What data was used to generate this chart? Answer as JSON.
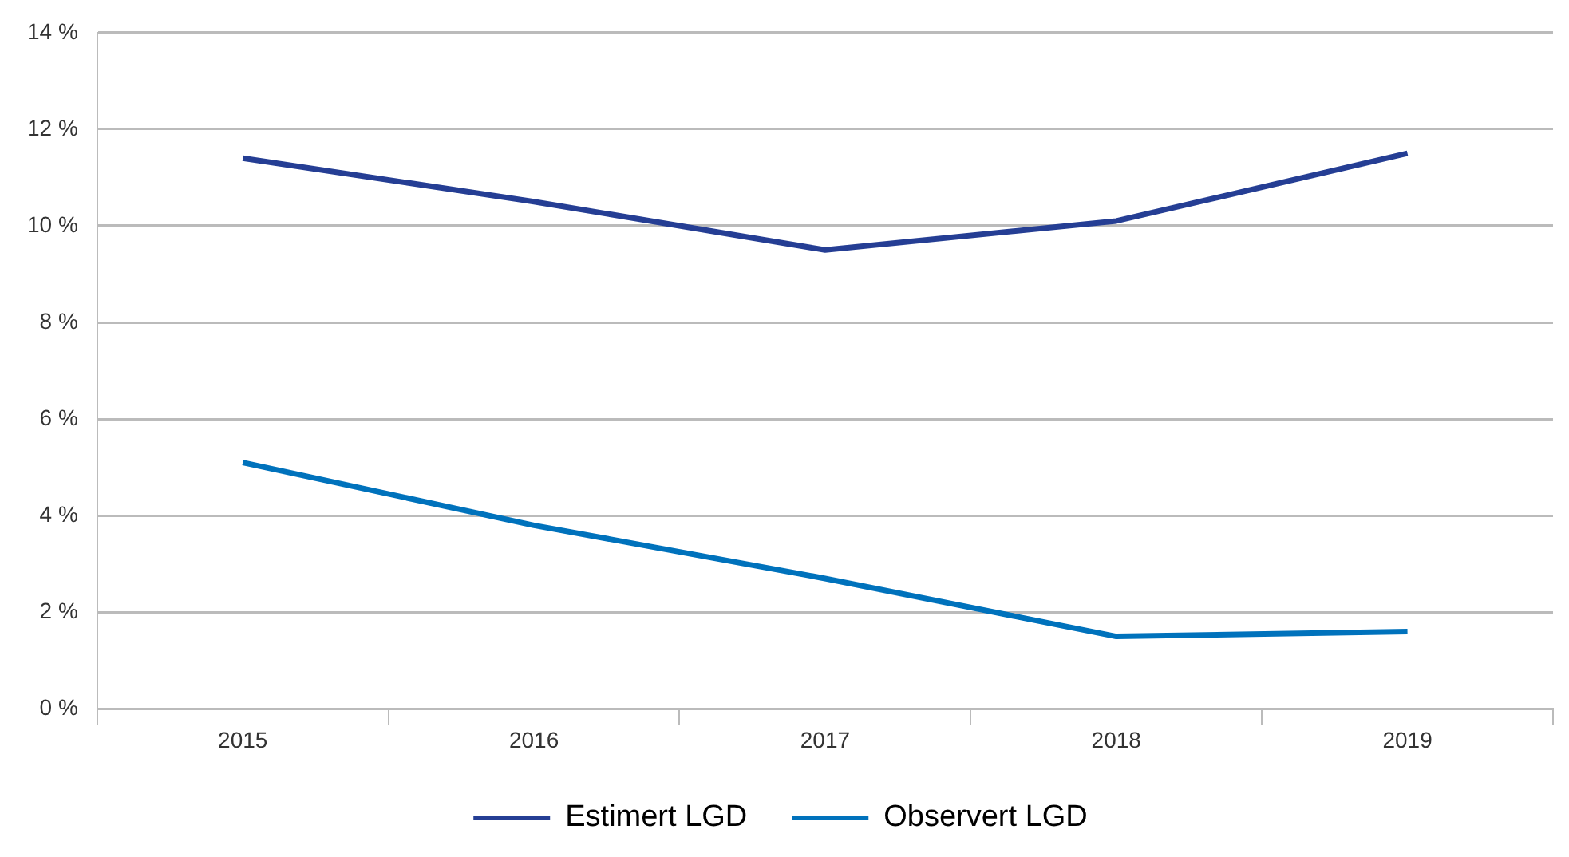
{
  "chart_data": {
    "type": "line",
    "categories": [
      "2015",
      "2016",
      "2017",
      "2018",
      "2019"
    ],
    "series": [
      {
        "name": "Estimert LGD",
        "color": "#253e94",
        "values": [
          11.4,
          10.5,
          9.5,
          10.1,
          11.5
        ]
      },
      {
        "name": "Observert LGD",
        "color": "#0072bc",
        "values": [
          5.1,
          3.8,
          2.7,
          1.5,
          1.6
        ]
      }
    ],
    "ylim": [
      0,
      14
    ],
    "yticks": [
      {
        "value": 0,
        "label": "0 %"
      },
      {
        "value": 2,
        "label": "2 %"
      },
      {
        "value": 4,
        "label": "4 %"
      },
      {
        "value": 6,
        "label": "6 %"
      },
      {
        "value": 8,
        "label": "8 %"
      },
      {
        "value": 10,
        "label": "10 %"
      },
      {
        "value": 12,
        "label": "12 %"
      },
      {
        "value": 14,
        "label": "14 %"
      }
    ],
    "grid": "y",
    "legend": "bottom",
    "marker": "none",
    "line_style": "solid"
  }
}
